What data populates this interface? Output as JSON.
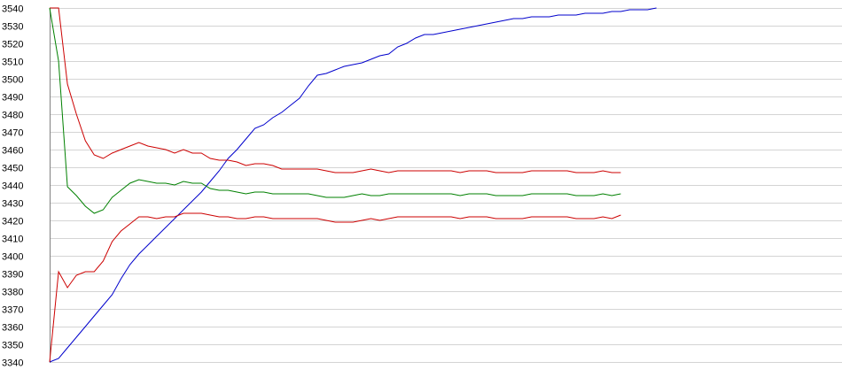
{
  "chart_data": {
    "type": "line",
    "grid": true,
    "legend": "none",
    "xlim": [
      0,
      88
    ],
    "ylim": [
      3340,
      3540
    ],
    "y_ticks": [
      3340,
      3350,
      3360,
      3370,
      3380,
      3390,
      3400,
      3410,
      3420,
      3430,
      3440,
      3450,
      3460,
      3470,
      3480,
      3490,
      3500,
      3510,
      3520,
      3530,
      3540
    ],
    "series": [
      {
        "color": "#0000cc",
        "values": [
          3340,
          3342,
          3348,
          3354,
          3360,
          3366,
          3372,
          3378,
          3387,
          3395,
          3401,
          3406,
          3411,
          3416,
          3421,
          3426,
          3431,
          3436,
          3442,
          3448,
          3455,
          3460,
          3466,
          3472,
          3474,
          3478,
          3481,
          3485,
          3489,
          3496,
          3502,
          3503,
          3505,
          3507,
          3508,
          3509,
          3511,
          3513,
          3514,
          3518,
          3520,
          3523,
          3525,
          3525,
          3526,
          3527,
          3528,
          3529,
          3530,
          3531,
          3532,
          3533,
          3534,
          3534,
          3535,
          3535,
          3535,
          3536,
          3536,
          3536,
          3537,
          3537,
          3537,
          3538,
          3538,
          3539,
          3539,
          3539,
          3540
        ]
      },
      {
        "color": "#cc0000",
        "values": [
          3540,
          3540,
          3497,
          3480,
          3465,
          3457,
          3455,
          3458,
          3460,
          3462,
          3464,
          3462,
          3461,
          3460,
          3458,
          3460,
          3458,
          3458,
          3455,
          3454,
          3454,
          3453,
          3451,
          3452,
          3452,
          3451,
          3449,
          3449,
          3449,
          3449,
          3449,
          3448,
          3447,
          3447,
          3447,
          3448,
          3449,
          3448,
          3447,
          3448,
          3448,
          3448,
          3448,
          3448,
          3448,
          3448,
          3447,
          3448,
          3448,
          3448,
          3447,
          3447,
          3447,
          3447,
          3448,
          3448,
          3448,
          3448,
          3448,
          3447,
          3447,
          3447,
          3448,
          3447,
          3447
        ]
      },
      {
        "color": "#008000",
        "values": [
          3540,
          3510,
          3439,
          3434,
          3428,
          3424,
          3426,
          3433,
          3437,
          3441,
          3443,
          3442,
          3441,
          3441,
          3440,
          3442,
          3441,
          3441,
          3438,
          3437,
          3437,
          3436,
          3435,
          3436,
          3436,
          3435,
          3435,
          3435,
          3435,
          3435,
          3434,
          3433,
          3433,
          3433,
          3434,
          3435,
          3434,
          3434,
          3435,
          3435,
          3435,
          3435,
          3435,
          3435,
          3435,
          3435,
          3434,
          3435,
          3435,
          3435,
          3434,
          3434,
          3434,
          3434,
          3435,
          3435,
          3435,
          3435,
          3435,
          3434,
          3434,
          3434,
          3435,
          3434,
          3435
        ]
      },
      {
        "color": "#cc0000",
        "values": [
          3340,
          3391,
          3382,
          3389,
          3391,
          3391,
          3397,
          3408,
          3414,
          3418,
          3422,
          3422,
          3421,
          3422,
          3422,
          3424,
          3424,
          3424,
          3423,
          3422,
          3422,
          3421,
          3421,
          3422,
          3422,
          3421,
          3421,
          3421,
          3421,
          3421,
          3421,
          3420,
          3419,
          3419,
          3419,
          3420,
          3421,
          3420,
          3421,
          3422,
          3422,
          3422,
          3422,
          3422,
          3422,
          3422,
          3421,
          3422,
          3422,
          3422,
          3421,
          3421,
          3421,
          3421,
          3422,
          3422,
          3422,
          3422,
          3422,
          3421,
          3421,
          3421,
          3422,
          3421,
          3423
        ]
      }
    ]
  }
}
